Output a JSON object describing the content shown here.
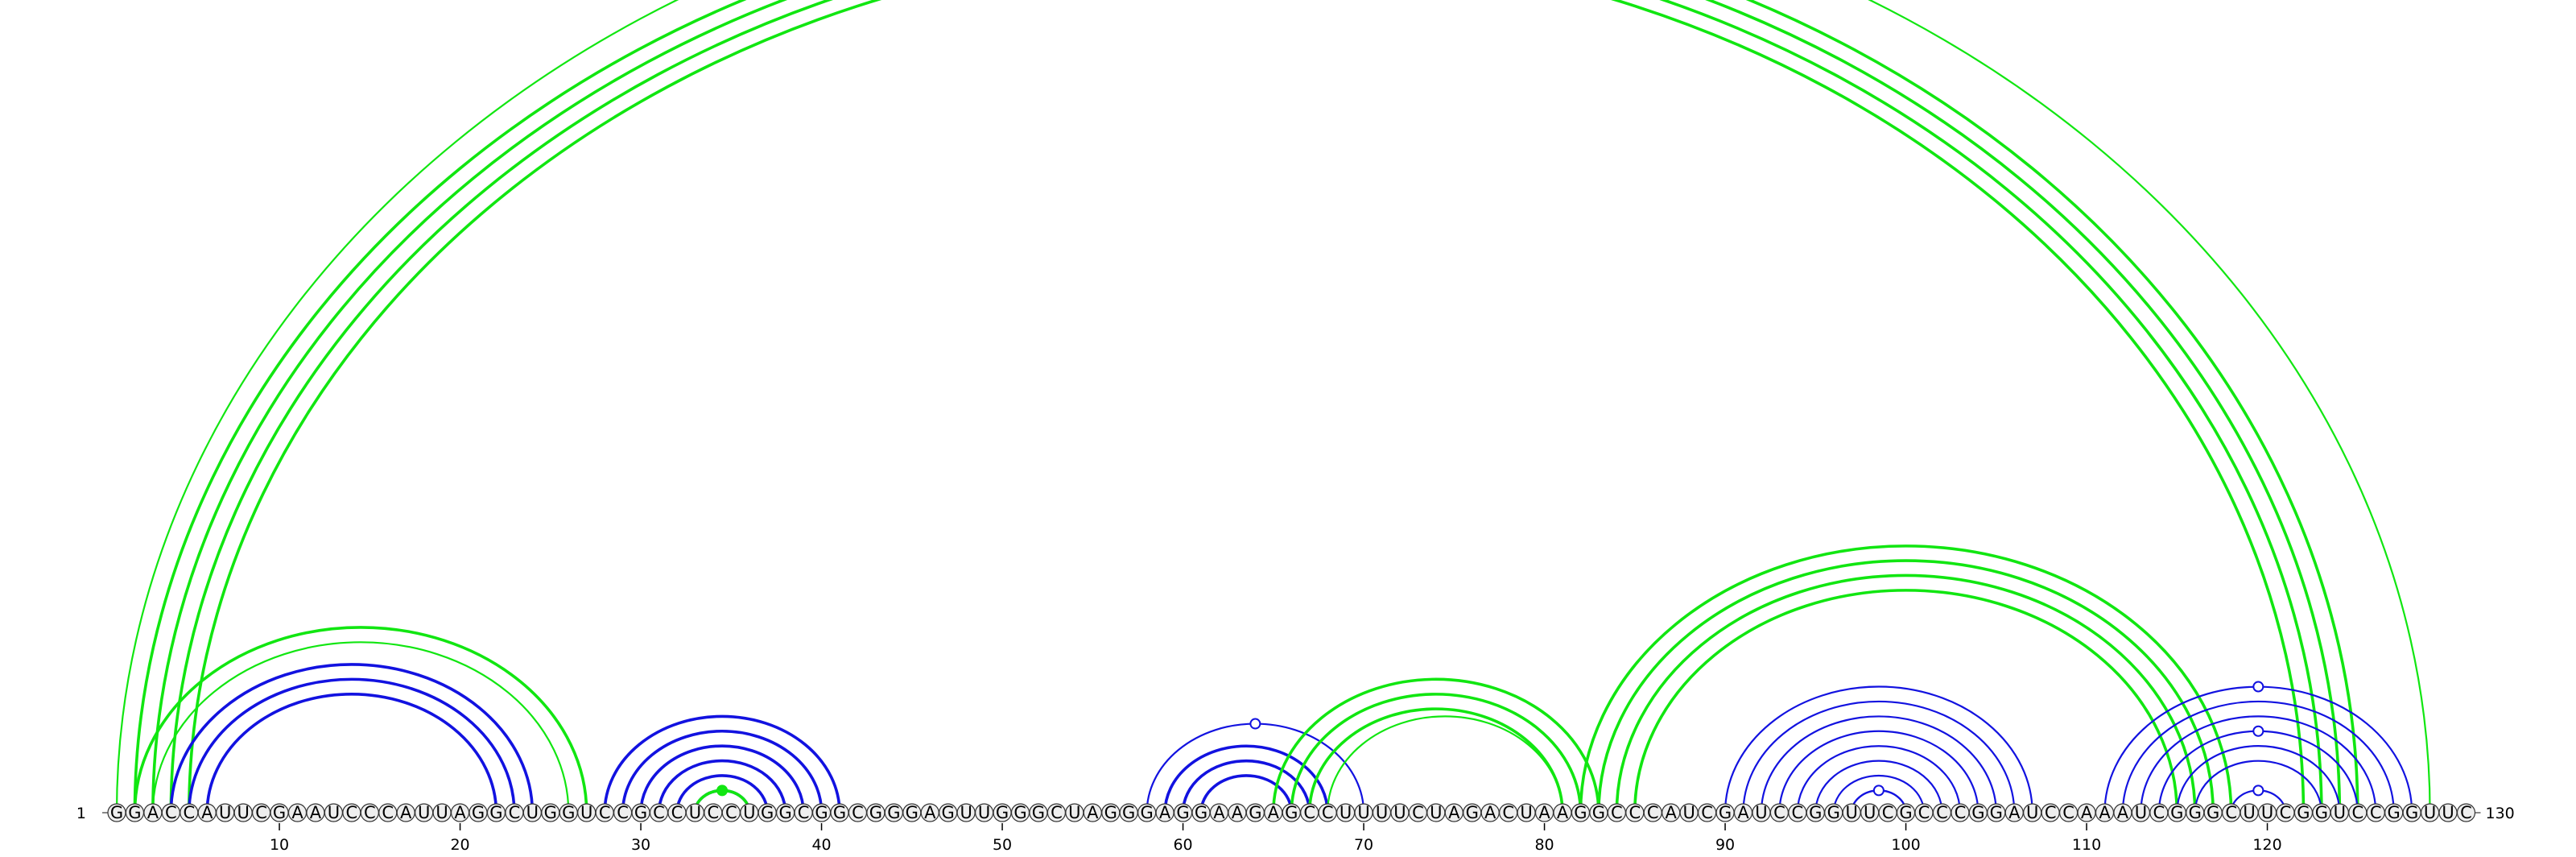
{
  "sequence": "GGACCAUUCGAAUCCCAUUAGGCUGGUCCGCCUCCUGGCGGCGGGAGUUGGGCUAGGGAGGAAGAGCCUUUUCUAGACUAAGGCCCAUCGAUCCGGUUCGCCCGGAUCCAAAUCGGGCUUCGGUCCGGUUC",
  "start_label": "1",
  "end_label": "130",
  "ticks": [
    "10",
    "20",
    "30",
    "40",
    "50",
    "60",
    "70",
    "80",
    "90",
    "100",
    "110",
    "120"
  ],
  "colors": {
    "primary_arc": "#1212e0",
    "alternative_arc": "#11e611",
    "backbone": "#888888",
    "nucleotide_fill": "#eeeeee"
  },
  "helices": [
    {
      "group": "green",
      "start": 1,
      "end": 129,
      "count": 1,
      "weight": "thin",
      "marker": "open"
    },
    {
      "group": "green",
      "start": 2,
      "end": 125,
      "count": 4,
      "weight": "thick"
    },
    {
      "group": "green",
      "start": 2,
      "end": 27,
      "count": 1,
      "weight": "thick"
    },
    {
      "group": "green",
      "start": 3,
      "end": 26,
      "count": 1,
      "weight": "thin"
    },
    {
      "group": "blue",
      "start": 4,
      "end": 24,
      "count": 3,
      "weight": "thick"
    },
    {
      "group": "blue",
      "start": 5,
      "end": 23,
      "count": 1,
      "weight": "thin"
    },
    {
      "group": "blue",
      "start": 28,
      "end": 41,
      "count": 6,
      "weight": "thick"
    },
    {
      "group": "green",
      "start": 33,
      "end": 36,
      "count": 1,
      "weight": "thick",
      "marker": "filled"
    },
    {
      "group": "blue",
      "start": 58,
      "end": 70,
      "count": 1,
      "weight": "thin",
      "marker": "open"
    },
    {
      "group": "blue",
      "start": 59,
      "end": 68,
      "count": 3,
      "weight": "thick"
    },
    {
      "group": "green",
      "start": 65,
      "end": 83,
      "count": 3,
      "weight": "thick"
    },
    {
      "group": "green",
      "start": 68,
      "end": 81,
      "count": 1,
      "weight": "thin"
    },
    {
      "group": "green",
      "start": 82,
      "end": 118,
      "count": 4,
      "weight": "thick"
    },
    {
      "group": "blue",
      "start": 90,
      "end": 107,
      "count": 8,
      "weight": "thin"
    },
    {
      "group": "blue",
      "start": 97,
      "end": 100,
      "count": 1,
      "weight": "thin",
      "marker": "open"
    },
    {
      "group": "blue",
      "start": 111,
      "end": 128,
      "count": 1,
      "weight": "thin",
      "marker": "open"
    },
    {
      "group": "blue",
      "start": 112,
      "end": 127,
      "count": 2,
      "weight": "thin"
    },
    {
      "group": "blue",
      "start": 114,
      "end": 125,
      "count": 2,
      "weight": "thin",
      "marker": "open"
    },
    {
      "group": "blue",
      "start": 116,
      "end": 123,
      "count": 1,
      "weight": "thin"
    },
    {
      "group": "blue",
      "start": 118,
      "end": 121,
      "count": 1,
      "weight": "thin",
      "marker": "open"
    }
  ]
}
